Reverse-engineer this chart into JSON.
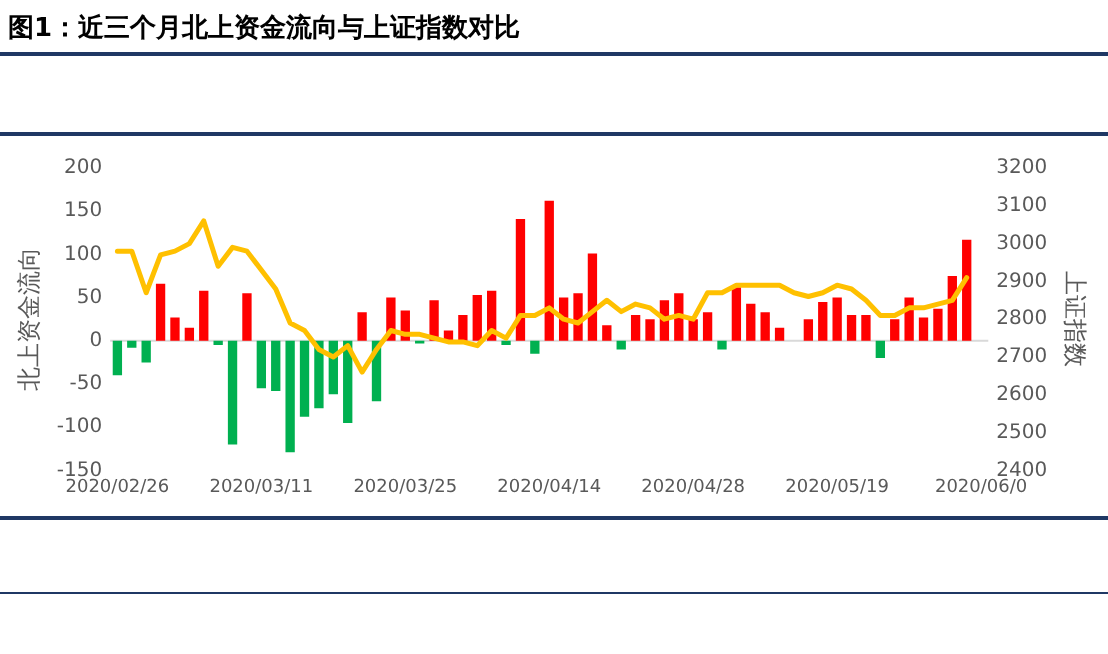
{
  "chart_data": {
    "type": "bar",
    "title": "图1：近三个月北上资金流向与上证指数对比",
    "ylabel": "北上资金流向",
    "y2label": "上证指数",
    "categories": [
      "2020/02/26",
      null,
      null,
      null,
      null,
      null,
      null,
      null,
      null,
      null,
      "2020/03/11",
      null,
      null,
      null,
      null,
      null,
      null,
      null,
      null,
      null,
      "2020/03/25",
      null,
      null,
      null,
      null,
      null,
      null,
      null,
      null,
      null,
      "2020/04/14",
      null,
      null,
      null,
      null,
      null,
      null,
      null,
      null,
      null,
      "2020/04/28",
      null,
      null,
      null,
      null,
      null,
      null,
      null,
      null,
      null,
      "2020/05/19",
      null,
      null,
      null,
      null,
      null,
      null,
      null,
      null,
      null,
      "2020/06/0"
    ],
    "series": [
      {
        "values": [
          -40,
          -8,
          -25,
          66,
          27,
          15,
          58,
          -5,
          -120,
          55,
          -55,
          -58,
          -129,
          -88,
          -78,
          -62,
          -95,
          33,
          -70,
          50,
          35,
          -3,
          47,
          12,
          30,
          53,
          58,
          -5,
          141,
          -15,
          162,
          50,
          55,
          101,
          18,
          -10,
          30,
          25,
          47,
          55,
          25,
          33,
          -10,
          62,
          43,
          33,
          15,
          0,
          25,
          45,
          50,
          30,
          30,
          -20,
          25,
          50,
          27,
          37,
          75,
          117,
          null
        ],
        "colors": [
          "#00b050",
          "#00b050",
          "#00b050",
          "#ff0000",
          "#ff0000",
          "#ff0000",
          "#ff0000",
          "#00b050",
          "#00b050",
          "#ff0000",
          "#00b050",
          "#00b050",
          "#00b050",
          "#00b050",
          "#00b050",
          "#00b050",
          "#00b050",
          "#ff0000",
          "#00b050",
          "#ff0000",
          "#ff0000",
          "#00b050",
          "#ff0000",
          "#ff0000",
          "#ff0000",
          "#ff0000",
          "#ff0000",
          "#00b050",
          "#ff0000",
          "#00b050",
          "#ff0000",
          "#ff0000",
          "#ff0000",
          "#ff0000",
          "#ff0000",
          "#00b050",
          "#ff0000",
          "#ff0000",
          "#ff0000",
          "#ff0000",
          "#ff0000",
          "#ff0000",
          "#00b050",
          "#ff0000",
          "#ff0000",
          "#ff0000",
          "#ff0000",
          "#ff0000",
          "#ff0000",
          "#ff0000",
          "#ff0000",
          "#ff0000",
          "#ff0000",
          "#00b050",
          "#ff0000",
          "#ff0000",
          "#ff0000",
          "#ff0000",
          "#ff0000",
          "#ff0000",
          "#ff0000"
        ]
      },
      {
        "type": "line",
        "axis": "y2",
        "color": "#ffc000",
        "values": [
          2980,
          2980,
          2870,
          2970,
          2980,
          3000,
          3060,
          2940,
          2990,
          2980,
          2930,
          2880,
          2790,
          2770,
          2720,
          2700,
          2730,
          2660,
          2720,
          2770,
          2760,
          2760,
          2750,
          2740,
          2740,
          2730,
          2770,
          2750,
          2810,
          2810,
          2830,
          2800,
          2790,
          2820,
          2850,
          2820,
          2840,
          2830,
          2800,
          2810,
          2800,
          2870,
          2870,
          2890,
          2890,
          2890,
          2890,
          2870,
          2860,
          2870,
          2890,
          2880,
          2850,
          2810,
          2810,
          2830,
          2830,
          2840,
          2850,
          2910,
          null
        ]
      }
    ],
    "ylim": [
      -150,
      200
    ],
    "yticks": [
      -150,
      -100,
      -50,
      0,
      50,
      100,
      150,
      200
    ],
    "y2lim": [
      2400,
      3200
    ],
    "y2ticks": [
      2400,
      2500,
      2600,
      2700,
      2800,
      2900,
      3000,
      3100,
      3200
    ],
    "ref_lines": [
      {
        "axis": "y",
        "value": 0,
        "color": "#d9d9d9"
      }
    ],
    "marker": "none",
    "grid": false,
    "legend": false
  }
}
